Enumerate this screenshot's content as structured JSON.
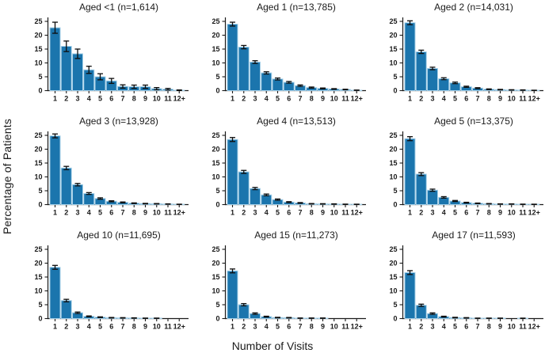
{
  "figure": {
    "background": "#ffffff",
    "axis_color": "#1a1a1a",
    "text_color": "#1a1a1a"
  },
  "chart_data": {
    "type": "bar",
    "categories": [
      "1",
      "2",
      "3",
      "4",
      "5",
      "6",
      "7",
      "8",
      "9",
      "10",
      "11",
      "12+"
    ],
    "xlabel": "Number of Visits",
    "ylabel": "Percentage of Patients",
    "ylim": [
      0,
      25
    ],
    "yticks": [
      0,
      5,
      10,
      15,
      20,
      25
    ],
    "grid": false,
    "legend": "none",
    "bar_color": "#1b75ad",
    "bar_edge_color": "#a6d0e8",
    "error_bar_color": "#0d0d0d",
    "panels": [
      {
        "title": "Aged <1 (n=1,614)",
        "values": [
          22.7,
          16.0,
          13.3,
          7.5,
          5.0,
          3.5,
          1.5,
          1.4,
          1.4,
          0.7,
          0.5,
          0.15
        ],
        "errors": [
          2.0,
          1.9,
          1.7,
          1.3,
          1.1,
          0.9,
          0.6,
          0.6,
          0.6,
          0.4,
          0.3,
          0.1
        ]
      },
      {
        "title": "Aged 1 (n=13,785)",
        "values": [
          24.0,
          15.7,
          10.3,
          6.4,
          4.2,
          3.0,
          1.8,
          1.1,
          0.8,
          0.6,
          0.4,
          0.15
        ],
        "errors": [
          0.7,
          0.6,
          0.5,
          0.4,
          0.35,
          0.3,
          0.25,
          0.2,
          0.15,
          0.12,
          0.1,
          0.07
        ]
      },
      {
        "title": "Aged 2 (n=14,031)",
        "values": [
          24.5,
          14.0,
          8.0,
          4.3,
          2.8,
          1.4,
          0.9,
          0.5,
          0.35,
          0.25,
          0.2,
          0.1
        ],
        "errors": [
          0.7,
          0.6,
          0.45,
          0.35,
          0.28,
          0.2,
          0.16,
          0.12,
          0.1,
          0.08,
          0.08,
          0.05
        ]
      },
      {
        "title": "Aged 3 (n=13,928)",
        "values": [
          24.8,
          13.2,
          7.2,
          4.0,
          2.2,
          1.2,
          0.8,
          0.5,
          0.35,
          0.3,
          0.2,
          0.1
        ],
        "errors": [
          0.7,
          0.6,
          0.44,
          0.33,
          0.25,
          0.18,
          0.15,
          0.12,
          0.1,
          0.09,
          0.07,
          0.05
        ]
      },
      {
        "title": "Aged 4 (n=13,513)",
        "values": [
          23.5,
          11.8,
          5.8,
          3.5,
          1.8,
          0.9,
          0.6,
          0.3,
          0.25,
          0.2,
          0.12,
          0.1
        ],
        "errors": [
          0.72,
          0.55,
          0.4,
          0.31,
          0.22,
          0.16,
          0.13,
          0.09,
          0.08,
          0.08,
          0.06,
          0.05
        ]
      },
      {
        "title": "Aged 5 (n=13,375)",
        "values": [
          23.8,
          11.0,
          5.2,
          2.6,
          1.3,
          0.7,
          0.45,
          0.3,
          0.2,
          0.2,
          0.12,
          0.1
        ],
        "errors": [
          0.72,
          0.53,
          0.38,
          0.27,
          0.19,
          0.14,
          0.11,
          0.09,
          0.08,
          0.07,
          0.06,
          0.05
        ]
      },
      {
        "title": "Aged 10 (n=11,695)",
        "values": [
          18.5,
          6.5,
          2.1,
          0.8,
          0.5,
          0.3,
          0.25,
          0.2,
          0.12,
          0.12,
          0,
          0
        ],
        "errors": [
          0.7,
          0.45,
          0.26,
          0.16,
          0.13,
          0.1,
          0.09,
          0.08,
          0.06,
          0.06,
          0,
          0
        ]
      },
      {
        "title": "Aged 15 (n=11,273)",
        "values": [
          17.2,
          5.0,
          1.8,
          0.7,
          0.35,
          0.3,
          0.15,
          0.15,
          0.15,
          0,
          0,
          0
        ],
        "errors": [
          0.7,
          0.4,
          0.25,
          0.15,
          0.11,
          0.1,
          0.07,
          0.07,
          0.07,
          0,
          0,
          0
        ]
      },
      {
        "title": "Aged 17 (n=11,593)",
        "values": [
          16.6,
          4.8,
          1.8,
          0.7,
          0.35,
          0.25,
          0.12,
          0.12,
          0.12,
          0,
          0.1,
          0
        ],
        "errors": [
          0.7,
          0.4,
          0.25,
          0.15,
          0.11,
          0.09,
          0.06,
          0.06,
          0.06,
          0,
          0.06,
          0
        ]
      }
    ]
  }
}
